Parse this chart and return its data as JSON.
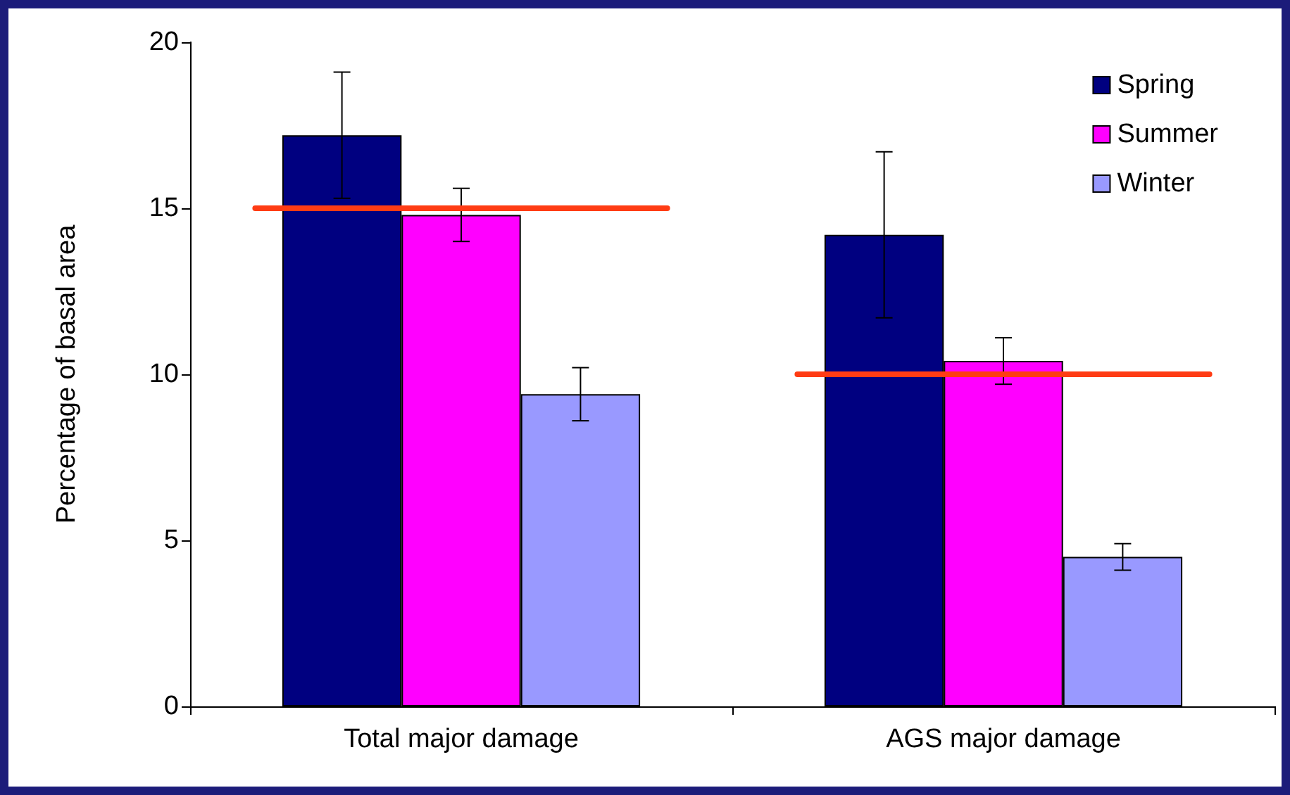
{
  "chart_data": {
    "type": "bar",
    "ylabel": "Percentage of basal area",
    "categories": [
      "Total major damage",
      "AGS major damage"
    ],
    "series": [
      {
        "name": "Spring",
        "color": "#000080",
        "values": [
          17.2,
          14.2
        ],
        "errors": [
          1.9,
          2.5
        ]
      },
      {
        "name": "Summer",
        "color": "#ff00ff",
        "values": [
          14.8,
          10.4
        ],
        "errors": [
          0.8,
          0.7
        ]
      },
      {
        "name": "Winter",
        "color": "#9999ff",
        "values": [
          9.4,
          4.5
        ],
        "errors": [
          0.8,
          0.4
        ]
      }
    ],
    "ref_lines": [
      {
        "axis": "y",
        "value": 15,
        "color": "#ff3c14",
        "line_style": "solid"
      },
      {
        "axis": "y",
        "value": 10,
        "color": "#ff3c14",
        "line_style": "solid"
      }
    ],
    "ylim": [
      0,
      20
    ],
    "yticks": [
      0,
      5,
      10,
      15,
      20
    ],
    "grid": false,
    "legend": "top right"
  }
}
